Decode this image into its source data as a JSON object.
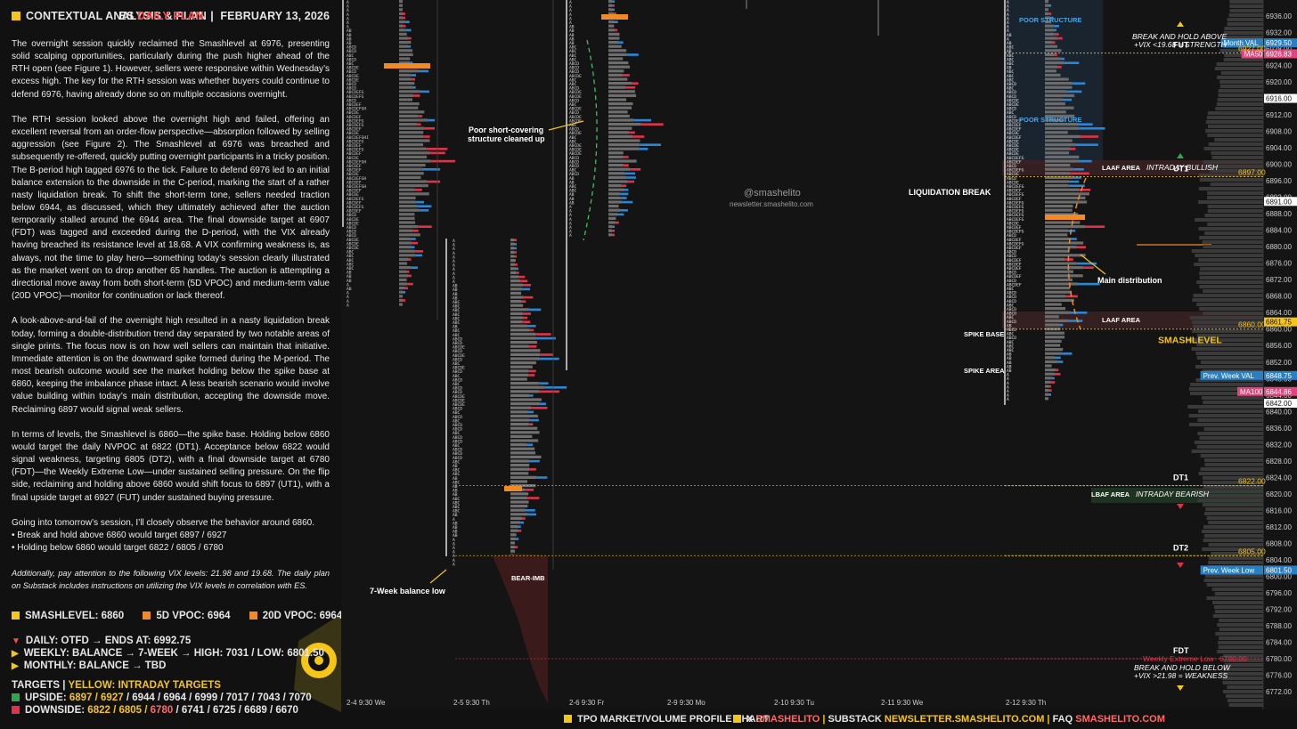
{
  "header": {
    "title": "CONTEXTUAL ANALYSIS & PLAN",
    "instrument": "ES",
    "plan": "DAILY PLAN",
    "date": "FEBRUARY 13, 2026"
  },
  "article": [
    "The overnight session quickly reclaimed the Smashlevel at 6976, presenting solid scalping opportunities, particularly during the push higher ahead of the RTH open (see Figure 1). However, sellers were responsive within Wednesday’s excess high. The key for the RTH session was whether buyers could continue to defend 6976, having already done so on multiple occasions overnight.",
    "The RTH session looked above the overnight high and failed, offering an excellent reversal from an order-flow perspective—absorption followed by selling aggression (see Figure 2). The Smashlevel at 6976 was breached and subsequently re-offered, quickly putting overnight participants in a tricky position. The B-period high tagged 6976 to the tick. Failure to defend 6976 led to an initial balance extension to the downside in the C-period, marking the start of a rather nasty liquidation break. To shift the short-term tone, sellers needed traction below 6944, as discussed, which they ultimately achieved after the auction temporarily stalled around the 6944 area. The final downside target at 6907 (FDT) was tagged and exceeded during the D-period, with the VIX already having breached its resistance level at 18.68. A VIX confirming weakness is, as always, not the time to play hero—something today’s session clearly illustrated as the market went on to drop another 65 handles. The auction is attempting a directional move away from both short-term (5D VPOC) and medium-term value (20D VPOC)—monitor for continuation or lack thereof.",
    "A look-above-and-fail of the overnight high resulted in a nasty liquidation break today, forming a double-distribution trend day separated by two notable areas of single prints. The focus now is on how well sellers can maintain that initiative. Immediate attention is on the downward spike formed during the M-period. The most bearish outcome would see the market holding below the spike base at 6860, keeping the imbalance phase intact. A less bearish scenario would involve value building within today’s main distribution, accepting the downside move. Reclaiming 6897 would signal weak sellers.",
    "In terms of levels, the Smashlevel is 6860—the spike base. Holding below 6860 would target the daily NVPOC at 6822 (DT1). Acceptance below 6822 would signal weakness, targeting 6805 (DT2), with a final downside target at 6780 (FDT)—the Weekly Extreme Low—under sustained selling pressure. On the flip side, reclaiming and holding above 6860 would shift focus to 6897 (UT1), with a final upside target at 6927 (FUT) under sustained buying pressure.",
    "Going into tomorrow’s session, I’ll closely observe the behavior around 6860."
  ],
  "bullets": [
    "• Break and hold above 6860 would target 6897 / 6927",
    "• Holding below 6860 would target 6822 / 6805 / 6780"
  ],
  "footnote": "Additionally, pay attention to the following VIX levels: 21.98 and 19.68. The daily plan on Substack includes instructions on utilizing the VIX levels in correlation with ES.",
  "summary": {
    "vpoc_row": [
      {
        "label": "SMASHLEVEL: 6860",
        "color": "#f5c518"
      },
      {
        "label": "5D VPOC: 6964",
        "color": "#f08a24"
      },
      {
        "label": "20D VPOC: 6964",
        "color": "#f08a24"
      }
    ],
    "daily": "DAILY: OTFD → ENDS AT: 6992.75",
    "weekly": "WEEKLY: BALANCE → 7-WEEK → HIGH: 7031 / LOW:  6801.50",
    "monthly": "MONTHLY: BALANCE → TBD",
    "targets_label": "TARGETS",
    "targets_note": "YELLOW: INTRADAY TARGETS",
    "upside_label": "UPSIDE:",
    "upside_hi": "6897 / 6927",
    "upside_rest": "/ 6944 / 6964 / 6999 / 7017 / 7043 / 7070",
    "downside_label": "DOWNSIDE:",
    "downside_hi": "6822 / 6805 /",
    "downside_red": "6780",
    "downside_rest": "/ 6741 / 6725 / 6689 / 6670",
    "upside_color": "#2ea84a",
    "downside_color": "#e0334a"
  },
  "footer": {
    "chart_label": "TPO MARKET/VOLUME PROFILE CHART",
    "x": "X",
    "x_handle": "SMASHELITO",
    "substack": "SUBSTACK",
    "substack_url": "NEWSLETTER.SMASHELITO.COM",
    "faq": "FAQ",
    "faq_handle": "SMASHELITO.COM"
  },
  "chart_data": {
    "type": "table",
    "title": "ES TPO Market/Volume Profile",
    "watermark": [
      "@smashelito",
      "newsletter.smashelito.com"
    ],
    "y_axis": {
      "ylim": [
        6770,
        6940
      ],
      "ticks": [
        6936,
        6932,
        6928,
        6924,
        6920,
        6916,
        6912,
        6908,
        6904,
        6900,
        6896,
        6892,
        6888,
        6884,
        6880,
        6876,
        6872,
        6868,
        6864,
        6860,
        6856,
        6852,
        6848,
        6844,
        6840,
        6836,
        6832,
        6828,
        6824,
        6820,
        6816,
        6812,
        6808,
        6804,
        6800,
        6796,
        6792,
        6788,
        6784,
        6780,
        6776,
        6772
      ],
      "tick_labels": [
        "6936.00",
        "6932.00",
        "6928.00",
        "6924.00",
        "6920.00",
        "6916.00",
        "6912.00",
        "6908.00",
        "6904.00",
        "6900.00",
        "6896.00",
        "6892.00",
        "6888.00",
        "6884.00",
        "6880.00",
        "6876.00",
        "6872.00",
        "6868.00",
        "6864.00",
        "6860.00",
        "6856.00",
        "6852.00",
        "6848.00",
        "6844.00",
        "6840.00",
        "6836.00",
        "6832.00",
        "6828.00",
        "6824.00",
        "6820.00",
        "6816.00",
        "6812.00",
        "6808.00",
        "6804.00",
        "6800.00",
        "6796.00",
        "6792.00",
        "6788.00",
        "6784.00",
        "6780.00",
        "6776.00",
        "6772.00"
      ]
    },
    "x_sessions": [
      "2-4  9:30 We",
      "2-5  9:30 Th",
      "2-6  9:30 Fr",
      "2-9  9:30 Mo",
      "2-10  9:30 Tu",
      "2-11  9:30 We",
      "2-12  9:30 Th"
    ],
    "levels": [
      {
        "label": "FUT",
        "value": 6927
      },
      {
        "label": "UT1",
        "value": 6897
      },
      {
        "label": "SMASHLEVEL",
        "value": 6860
      },
      {
        "label": "DT1",
        "value": 6822
      },
      {
        "label": "DT2",
        "value": 6805
      },
      {
        "label": "FDT",
        "value": 6780
      }
    ],
    "price_tags": [
      {
        "label": "Month VAL",
        "value": "6929.50",
        "color": "#2a7fc1"
      },
      {
        "label": "MA50",
        "value": "6926.83",
        "color": "#e0457b"
      },
      {
        "label": "",
        "value": "6927.00",
        "color": "#f5c518"
      },
      {
        "label": "",
        "value": "6916.00",
        "color": "#ffffff"
      },
      {
        "label": "",
        "value": "6897.00",
        "color": "#f5c518"
      },
      {
        "label": "",
        "value": "6891.00",
        "color": "#ffffff"
      },
      {
        "label": "",
        "value": "6861.75",
        "color": "#f5c518"
      },
      {
        "label": "",
        "value": "6860.00",
        "color": "#f5c518"
      },
      {
        "label": "Prev. Week VAL",
        "value": "6848.75",
        "color": "#2a7fc1"
      },
      {
        "label": "MA100",
        "value": "6844.86",
        "color": "#e0457b"
      },
      {
        "label": "",
        "value": "6842.00",
        "color": "#ffffff"
      },
      {
        "label": "",
        "value": "6822.00",
        "color": "#f5c518"
      },
      {
        "label": "",
        "value": "6805.00",
        "color": "#f5c518"
      },
      {
        "label": "Prev. Week Low",
        "value": "6801.50",
        "color": "#2a7fc1"
      },
      {
        "label": "Weekly Extreme Low",
        "value": "6780.00",
        "color": "#e0334a"
      }
    ],
    "annotations": [
      "Poor short-covering structure cleaned up",
      "7-Week balance low",
      "BEAR-IMB",
      "LIQUIDATION BREAK",
      "Main distribution",
      "SPIKE BASE",
      "SPIKE AREA",
      "POOR STRUCTURE",
      "POOR STRUCTURE",
      "LAAF AREA",
      "INTRADAY BULLISH",
      "LAAF AREA",
      "LBAF AREA",
      "INTRADAY BEARISH",
      "BREAK AND HOLD ABOVE",
      "+VIX <19.68 = STRENGTH",
      "BREAK AND HOLD BELOW",
      "+VIX >21.98 = WEAKNESS"
    ]
  }
}
